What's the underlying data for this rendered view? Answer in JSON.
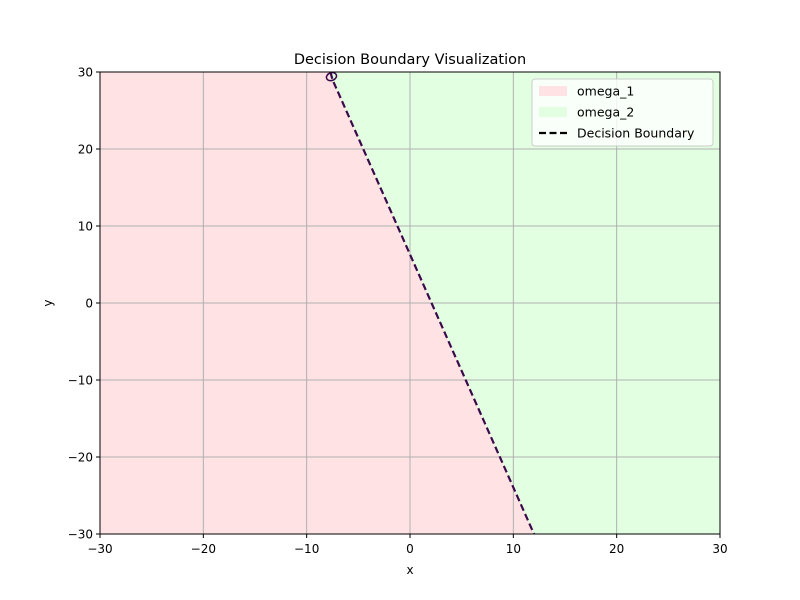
{
  "chart_data": {
    "type": "area",
    "title": "Decision Boundary Visualization",
    "xlabel": "x",
    "ylabel": "y",
    "xlim": [
      -30,
      30
    ],
    "ylim": [
      -30,
      30
    ],
    "xticks": [
      -30,
      -20,
      -10,
      0,
      10,
      20,
      30
    ],
    "yticks": [
      -30,
      -20,
      -10,
      0,
      10,
      20,
      30
    ],
    "xtick_labels": [
      "−30",
      "−20",
      "−10",
      "0",
      "10",
      "20",
      "30"
    ],
    "ytick_labels": [
      "−30",
      "−20",
      "−10",
      "0",
      "10",
      "20",
      "30"
    ],
    "grid": true,
    "legend_position": "top-right",
    "regions": [
      {
        "name": "omega_1",
        "color": "#ffe2e4",
        "side": "left-of-boundary"
      },
      {
        "name": "omega_2",
        "color": "#e2ffe2",
        "side": "right-of-boundary"
      }
    ],
    "boundary": {
      "name": "Decision Boundary",
      "style": "dashed",
      "color": "#3a0a4a",
      "points": [
        [
          -7.7,
          30
        ],
        [
          -7.5,
          29
        ],
        [
          12.0,
          -30
        ]
      ]
    },
    "boundary_blob": {
      "center": [
        -7.6,
        29.4
      ],
      "rx": 0.5,
      "ry": 0.5
    }
  }
}
